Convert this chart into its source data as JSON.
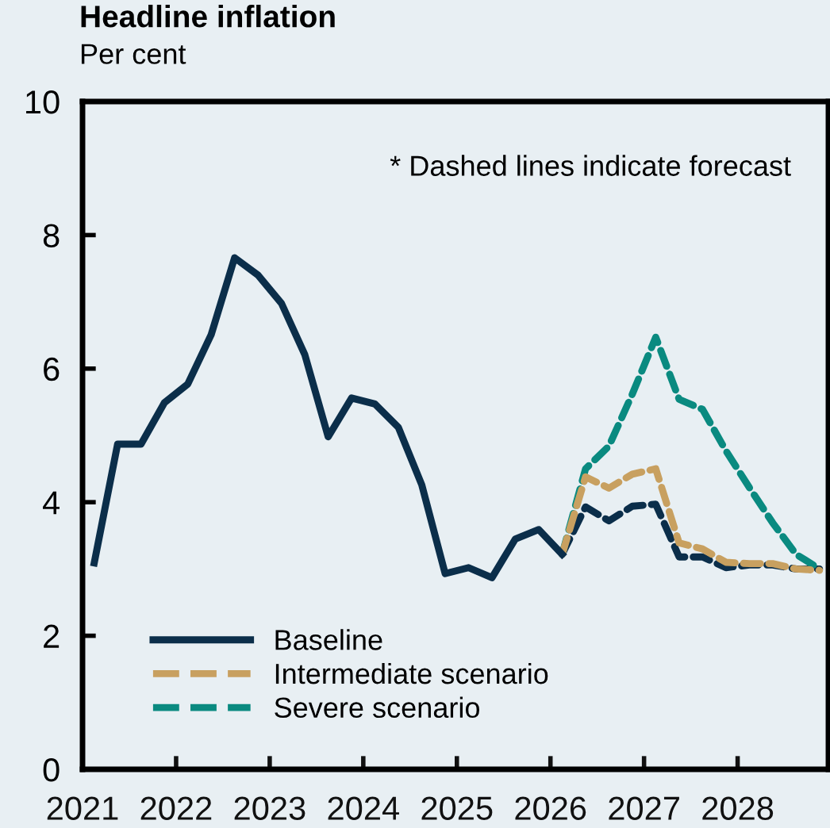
{
  "chart_data": {
    "type": "line",
    "title": "Headline inflation",
    "ylabel": "Per cent",
    "annotations": [
      "* Dashed lines indicate forecast"
    ],
    "xlim": [
      2021,
      2028.97
    ],
    "ylim": [
      0,
      10
    ],
    "yticks": [
      0,
      2,
      4,
      6,
      8,
      10
    ],
    "xticks": [
      2021,
      2022,
      2023,
      2024,
      2025,
      2026,
      2027,
      2028
    ],
    "grid": false,
    "legend": "bottom left",
    "marker": "none",
    "series": [
      {
        "name": "Baseline",
        "color": "#0b2e4a",
        "line_style": "solid",
        "x": [
          2021.125,
          2021.375,
          2021.625,
          2021.875,
          2022.125,
          2022.375,
          2022.625,
          2022.875,
          2023.125,
          2023.375,
          2023.625,
          2023.875,
          2024.125,
          2024.375,
          2024.625,
          2024.875,
          2025.125,
          2025.375,
          2025.625,
          2025.875,
          2026.125
        ],
        "values": [
          3.09,
          4.87,
          4.87,
          5.49,
          5.77,
          6.51,
          7.66,
          7.4,
          6.98,
          6.21,
          4.98,
          5.56,
          5.47,
          5.12,
          4.26,
          2.93,
          3.02,
          2.87,
          3.45,
          3.59,
          3.22
        ]
      },
      {
        "name": "Intermediate scenario",
        "color": "#c8a060",
        "line_style": "dashed",
        "x": [
          2026.125,
          2026.375,
          2026.625,
          2026.875,
          2027.125,
          2027.375,
          2027.625,
          2027.875,
          2028.125,
          2028.375,
          2028.625,
          2028.875
        ],
        "values": [
          3.22,
          4.38,
          4.21,
          4.42,
          4.5,
          3.39,
          3.3,
          3.1,
          3.08,
          3.08,
          3.0,
          2.98
        ]
      },
      {
        "name": "Severe scenario",
        "color": "#0a8a80",
        "line_style": "dashed",
        "x": [
          2026.125,
          2026.375,
          2026.625,
          2026.875,
          2027.125,
          2027.375,
          2027.625,
          2027.875,
          2028.125,
          2028.375,
          2028.625,
          2028.875
        ],
        "values": [
          3.22,
          4.5,
          4.84,
          5.62,
          6.47,
          5.54,
          5.39,
          4.77,
          4.22,
          3.69,
          3.22,
          3.0
        ]
      },
      {
        "color": "#0b2e4a",
        "line_style": "dashed",
        "x": [
          2026.125,
          2026.375,
          2026.625,
          2026.875,
          2027.125,
          2027.375,
          2027.625,
          2027.875,
          2028.125,
          2028.375,
          2028.625,
          2028.875
        ],
        "values": [
          3.22,
          3.93,
          3.72,
          3.94,
          3.97,
          3.18,
          3.18,
          3.02,
          3.06,
          3.06,
          3.0,
          3.0
        ]
      }
    ]
  }
}
